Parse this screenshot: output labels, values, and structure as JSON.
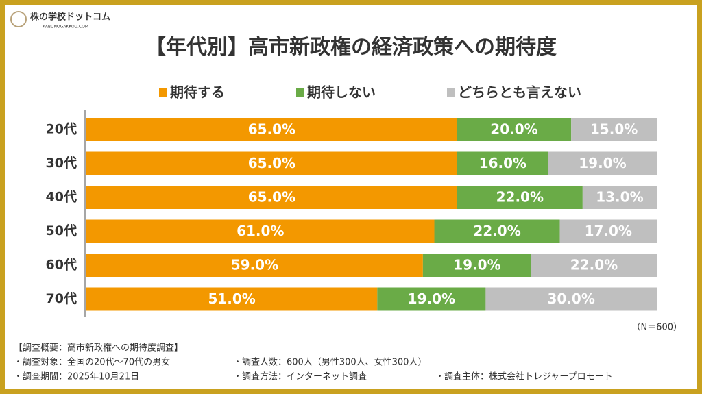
{
  "logo": {
    "name": "株の学校ドットコム",
    "sub": "KABUNOGAKKOU.COM"
  },
  "chart_data": {
    "type": "bar",
    "orientation": "horizontal",
    "stacked": true,
    "title": "【年代別】高市新政権の経済政策への期待度",
    "categories": [
      "20代",
      "30代",
      "40代",
      "50代",
      "60代",
      "70代"
    ],
    "series": [
      {
        "name": "期待する",
        "color": "#f39800",
        "values": [
          65,
          65,
          65,
          61,
          59,
          51
        ],
        "value_labels": [
          "65.0%",
          "65.0%",
          "65.0%",
          "61.0%",
          "59.0%",
          "51.0%"
        ]
      },
      {
        "name": "期待しない",
        "color": "#6aab47",
        "values": [
          20,
          16,
          22,
          22,
          19,
          19
        ],
        "value_labels": [
          "20.0%",
          "16.0%",
          "22.0%",
          "22.0%",
          "19.0%",
          "19.0%"
        ]
      },
      {
        "name": "どちらとも言えない",
        "color": "#bfbfbf",
        "values": [
          15,
          19,
          13,
          17,
          22,
          30
        ],
        "value_labels": [
          "15.0%",
          "19.0%",
          "13.0%",
          "17.0%",
          "22.0%",
          "30.0%"
        ]
      }
    ],
    "xlim": [
      0,
      100
    ],
    "legend": "top"
  },
  "note": "（N＝600）",
  "survey": {
    "heading": "【調査概要：高市新政権への期待度調査】",
    "items": [
      "・調査対象：全国の20代～70代の男女",
      "・調査人数：600人（男性300人、女性300人）",
      "・調査期間：2025年10月21日",
      "・調査方法：インターネット調査",
      "・調査主体：株式会社トレジャープロモート"
    ]
  }
}
